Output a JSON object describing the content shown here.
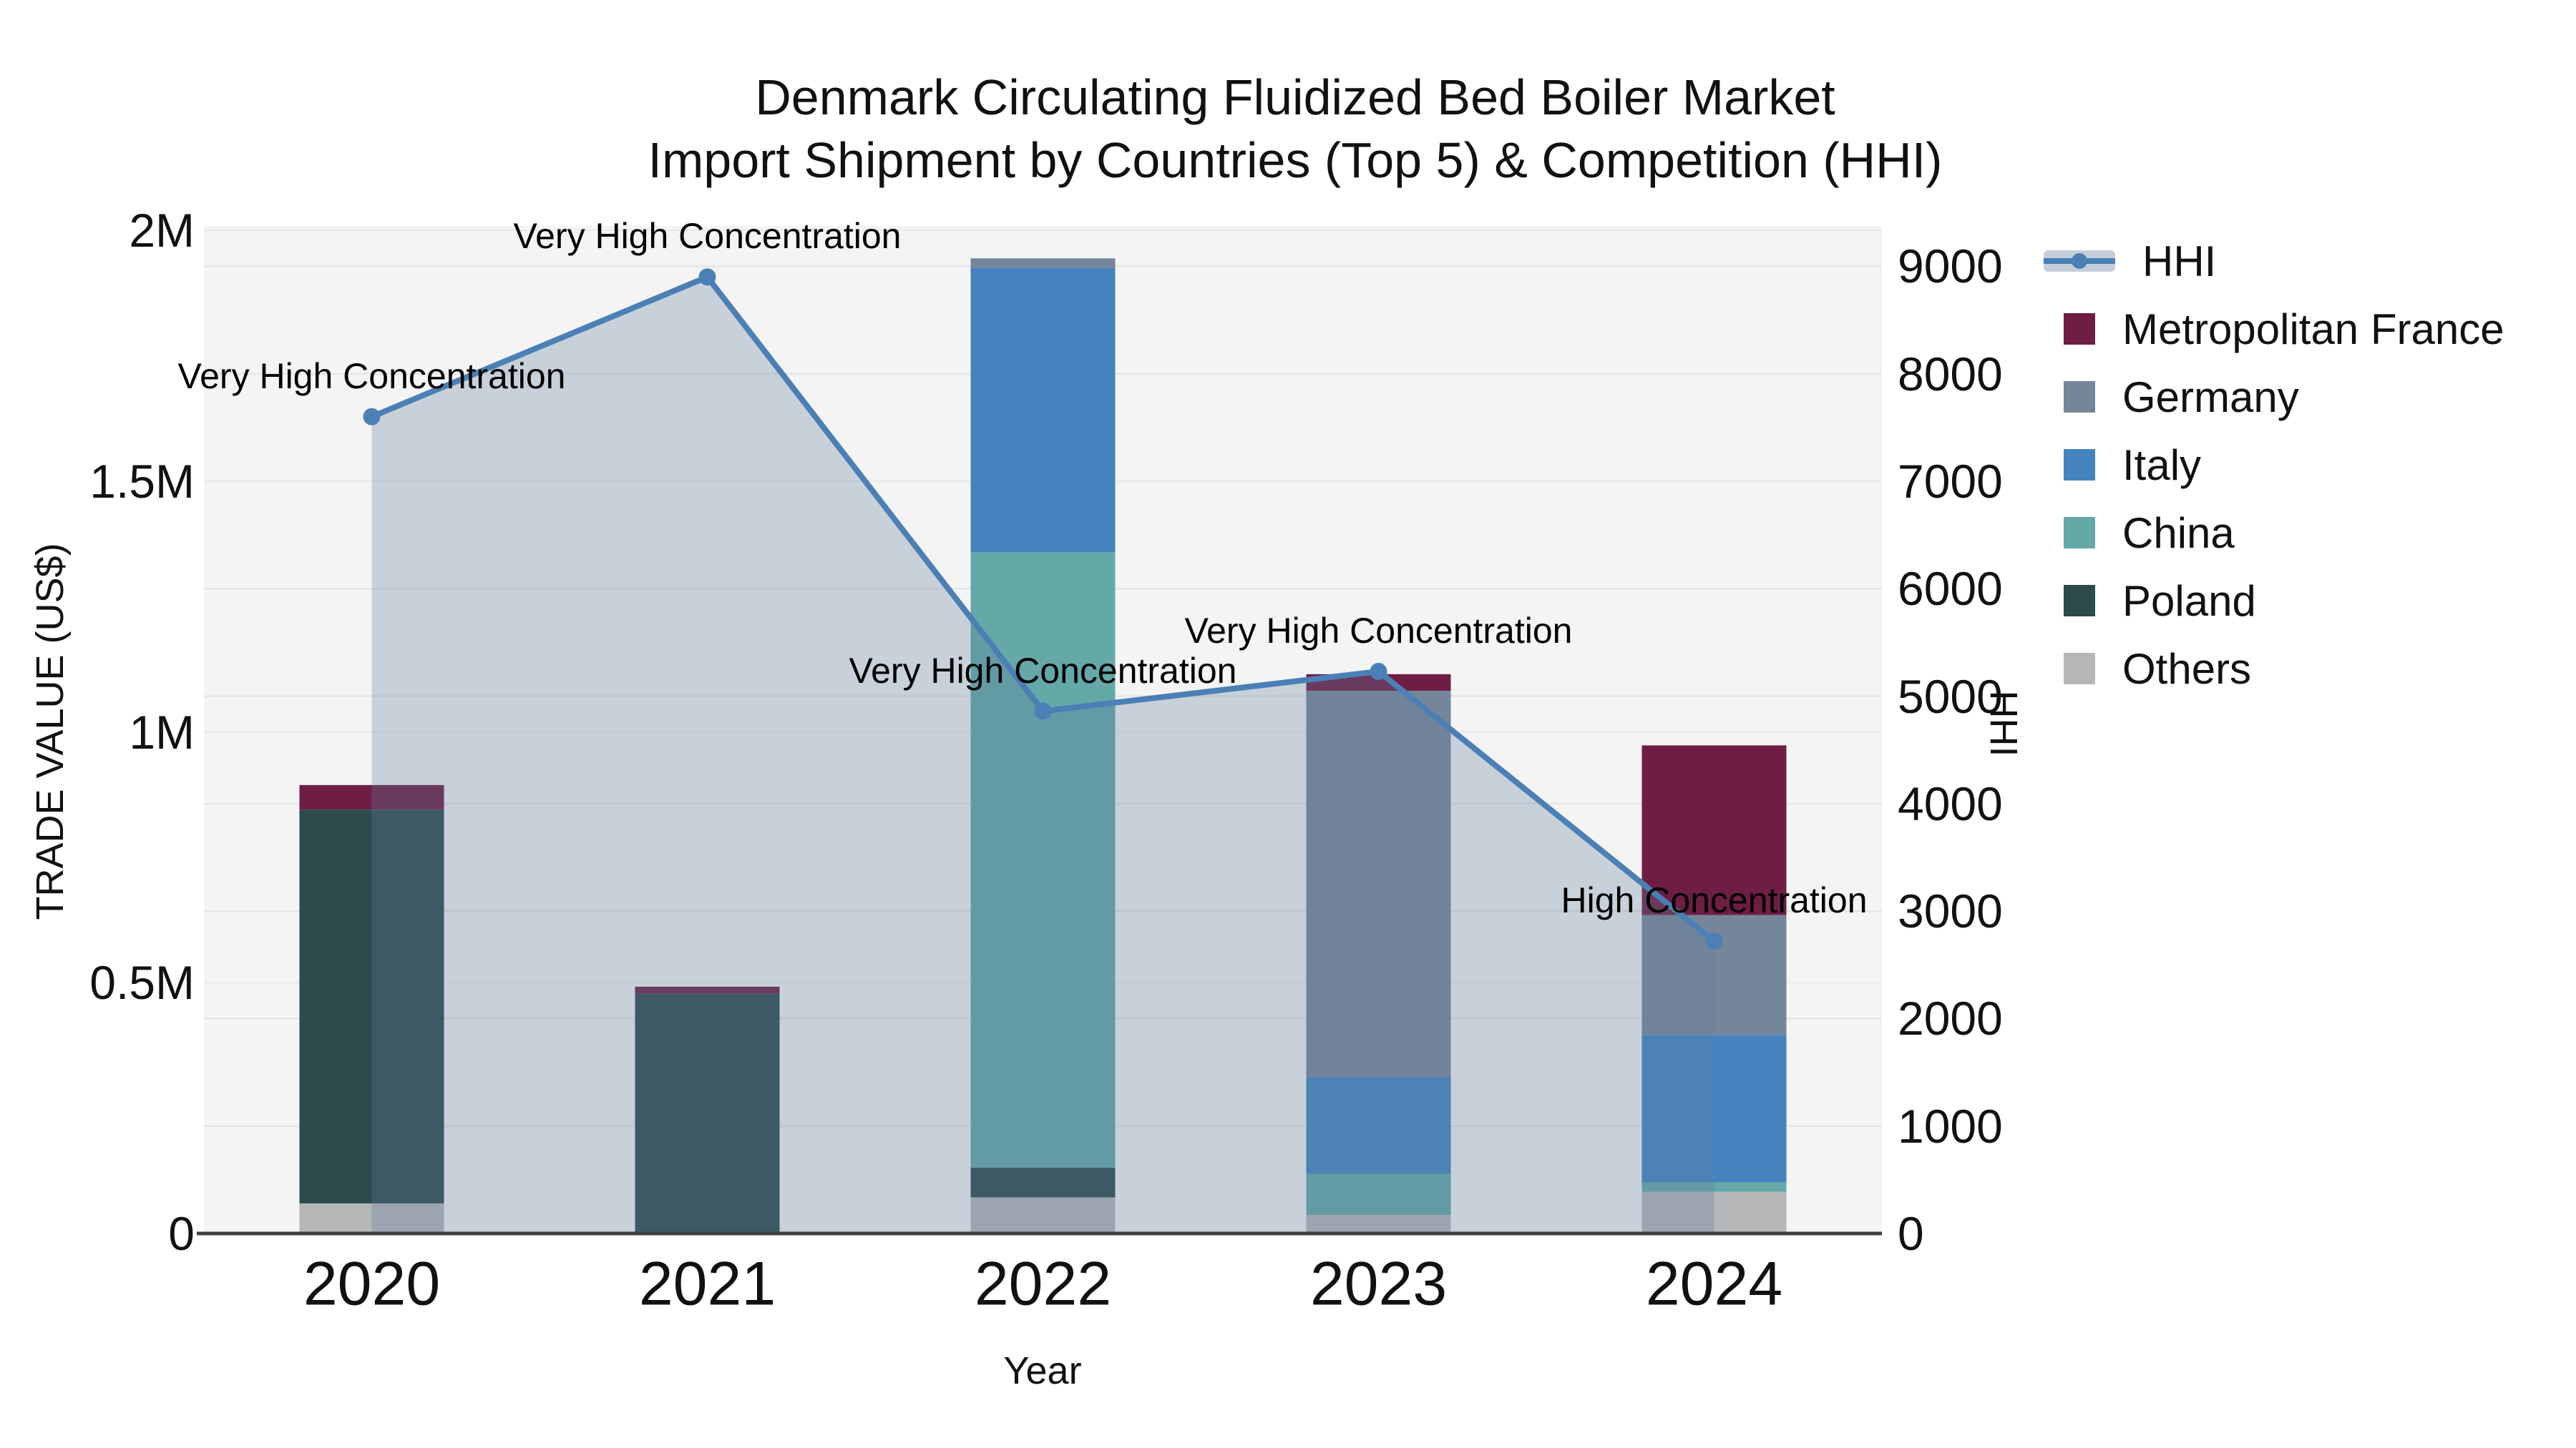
{
  "title": {
    "line1": "Denmark Circulating Fluidized Bed Boiler Market",
    "line2": "Import Shipment by Countries (Top 5) & Competition (HHI)"
  },
  "axes": {
    "x": {
      "title": "Year",
      "tick_labels": [
        "2020",
        "2021",
        "2022",
        "2023",
        "2024"
      ]
    },
    "y_left": {
      "title": "TRADE VALUE (US$)",
      "tick_labels": [
        "0",
        "0.5M",
        "1M",
        "1.5M",
        "2M"
      ],
      "tick_values": [
        0,
        500000,
        1000000,
        1500000,
        2000000
      ],
      "range": [
        0,
        2000000
      ]
    },
    "y_right": {
      "title": "HHI",
      "tick_labels": [
        "0",
        "1000",
        "2000",
        "3000",
        "4000",
        "5000",
        "6000",
        "7000",
        "8000",
        "9000"
      ],
      "tick_values": [
        0,
        1000,
        2000,
        3000,
        4000,
        5000,
        6000,
        7000,
        8000,
        9000
      ],
      "range": [
        0,
        9335
      ]
    }
  },
  "legend": {
    "items": [
      {
        "label": "HHI",
        "type": "line",
        "color": "#4a80b5"
      },
      {
        "label": "Metropolitan France",
        "type": "box",
        "color": "#6e1d44"
      },
      {
        "label": "Germany",
        "type": "box",
        "color": "#76869a"
      },
      {
        "label": "Italy",
        "type": "box",
        "color": "#4583bf"
      },
      {
        "label": "China",
        "type": "box",
        "color": "#64a8a8"
      },
      {
        "label": "Poland",
        "type": "box",
        "color": "#2d4a4d"
      },
      {
        "label": "Others",
        "type": "box",
        "color": "#b5b6b8"
      }
    ]
  },
  "chart_data": {
    "type": "combo-stacked-bar-with-line-area",
    "title": "Denmark Circulating Fluidized Bed Boiler Market Import Shipment by Countries (Top 5) & Competition (HHI)",
    "xlabel": "Year",
    "ylabel_left": "TRADE VALUE (US$)",
    "ylabel_right": "HHI",
    "categories": [
      "2020",
      "2021",
      "2022",
      "2023",
      "2024"
    ],
    "bar_stack_order_bottom_to_top": [
      "Others",
      "Poland",
      "China",
      "Italy",
      "Germany",
      "Metropolitan France"
    ],
    "series": [
      {
        "name": "Others",
        "color": "#b5b6b8",
        "values": [
          60000,
          0,
          72000,
          37000,
          83000
        ]
      },
      {
        "name": "Poland",
        "color": "#2d4a4d",
        "values": [
          785000,
          478000,
          59000,
          0,
          0
        ]
      },
      {
        "name": "China",
        "color": "#64a8a8",
        "values": [
          0,
          0,
          1227000,
          82000,
          19000
        ]
      },
      {
        "name": "Italy",
        "color": "#4583bf",
        "values": [
          0,
          0,
          567000,
          193000,
          294000
        ]
      },
      {
        "name": "Germany",
        "color": "#76869a",
        "values": [
          0,
          0,
          19000,
          770000,
          239000
        ]
      },
      {
        "name": "Metropolitan France",
        "color": "#6e1d44",
        "values": [
          49000,
          14000,
          0,
          33000,
          338000
        ]
      }
    ],
    "line_series": {
      "name": "HHI",
      "color": "#4a80b5",
      "fill_color": "rgba(101,127,157,0.30)",
      "values": [
        7600,
        8900,
        4860,
        5230,
        2720
      ]
    },
    "annotations": [
      {
        "x": "2020",
        "text": "Very High Concentration"
      },
      {
        "x": "2021",
        "text": "Very High Concentration"
      },
      {
        "x": "2022",
        "text": "Very High Concentration"
      },
      {
        "x": "2023",
        "text": "Very High Concentration"
      },
      {
        "x": "2024",
        "text": "High Concentration"
      }
    ],
    "style": {
      "plot_bg": "#f4f4f4",
      "grid_color": "#e3e3e3",
      "grid_color_left": "#eaeaea",
      "x_axis_line_color": "#3f3f3f",
      "legend_position": "right",
      "grid": "horizontal-only"
    }
  }
}
